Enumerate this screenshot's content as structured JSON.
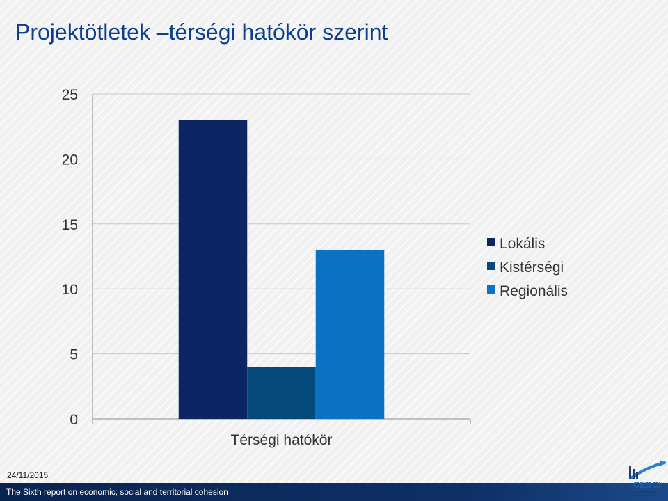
{
  "title": "Projektötletek –térségi hatókör szerint",
  "footer": {
    "date": "24/11/2015",
    "text": "The Sixth report on economic, social and territorial cohesion"
  },
  "logo": {
    "wordmark": "CESCI"
  },
  "colors": {
    "title": "#0b3d91",
    "footer_bar": "#0f2f66",
    "accent": "#1f6fc2"
  },
  "chart_data": {
    "type": "bar",
    "categories": [
      "Térségi hatókör"
    ],
    "series": [
      {
        "name": "Lokális",
        "values": [
          23
        ],
        "color": "#0d2563"
      },
      {
        "name": "Kistérségi",
        "values": [
          4
        ],
        "color": "#05497a"
      },
      {
        "name": "Regionális",
        "values": [
          13
        ],
        "color": "#0a71c3"
      }
    ],
    "ylim": [
      0,
      25
    ],
    "yticks": [
      0,
      5,
      10,
      15,
      20,
      25
    ],
    "grid": true,
    "legend": "right"
  }
}
